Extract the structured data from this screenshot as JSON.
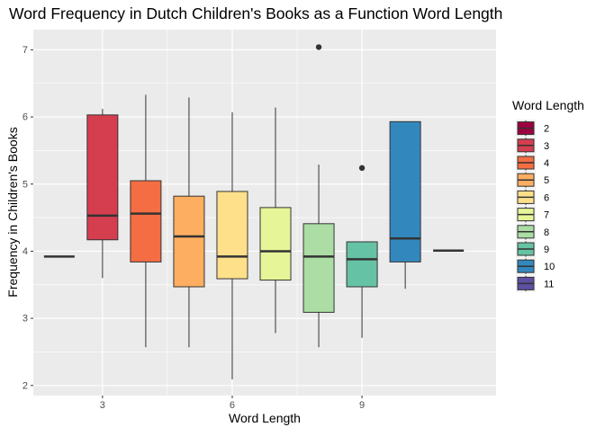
{
  "chart_data": {
    "type": "boxplot",
    "title": "Word Frequency in Dutch Children's Books as a Function Word Length",
    "xlabel": "Word Length",
    "ylabel": "Frequency in Children's Books",
    "xlim": [
      1.4,
      12.1
    ],
    "ylim": [
      1.85,
      7.3
    ],
    "x_ticks": [
      3,
      6,
      9
    ],
    "y_ticks": [
      2,
      3,
      4,
      5,
      6,
      7
    ],
    "grid": true,
    "legend": {
      "title": "Word Length",
      "position": "right",
      "entries": [
        {
          "label": "2",
          "color": "#9E0142"
        },
        {
          "label": "3",
          "color": "#D53E4F"
        },
        {
          "label": "4",
          "color": "#F46D43"
        },
        {
          "label": "5",
          "color": "#FDAE61"
        },
        {
          "label": "6",
          "color": "#FEE08B"
        },
        {
          "label": "7",
          "color": "#E6F598"
        },
        {
          "label": "8",
          "color": "#ABDDA4"
        },
        {
          "label": "9",
          "color": "#66C2A5"
        },
        {
          "label": "10",
          "color": "#3288BD"
        },
        {
          "label": "11",
          "color": "#5E4FA2"
        }
      ]
    },
    "boxes": [
      {
        "group": "2",
        "x": 2,
        "min": 3.92,
        "q1": 3.92,
        "median": 3.92,
        "q3": 3.92,
        "max": 3.92,
        "outliers": []
      },
      {
        "group": "3",
        "x": 3,
        "min": 3.6,
        "q1": 4.17,
        "median": 4.53,
        "q3": 6.03,
        "max": 6.12,
        "outliers": []
      },
      {
        "group": "4",
        "x": 4,
        "min": 2.57,
        "q1": 3.84,
        "median": 4.56,
        "q3": 5.05,
        "max": 6.33,
        "outliers": []
      },
      {
        "group": "5",
        "x": 5,
        "min": 2.57,
        "q1": 3.47,
        "median": 4.22,
        "q3": 4.82,
        "max": 6.29,
        "outliers": []
      },
      {
        "group": "6",
        "x": 6,
        "min": 2.09,
        "q1": 3.59,
        "median": 3.92,
        "q3": 4.89,
        "max": 6.07,
        "outliers": []
      },
      {
        "group": "7",
        "x": 7,
        "min": 2.78,
        "q1": 3.57,
        "median": 4.0,
        "q3": 4.65,
        "max": 6.14,
        "outliers": []
      },
      {
        "group": "8",
        "x": 8,
        "min": 2.57,
        "q1": 3.09,
        "median": 3.92,
        "q3": 4.41,
        "max": 5.29,
        "outliers": [
          7.04
        ]
      },
      {
        "group": "9",
        "x": 9,
        "min": 2.71,
        "q1": 3.47,
        "median": 3.88,
        "q3": 4.14,
        "max": 4.14,
        "outliers": [
          5.24
        ]
      },
      {
        "group": "10",
        "x": 10,
        "min": 3.44,
        "q1": 3.84,
        "median": 4.19,
        "q3": 5.93,
        "max": 5.93,
        "outliers": []
      },
      {
        "group": "11",
        "x": 11,
        "min": 4.01,
        "q1": 4.01,
        "median": 4.01,
        "q3": 4.01,
        "max": 4.01,
        "outliers": []
      }
    ]
  }
}
